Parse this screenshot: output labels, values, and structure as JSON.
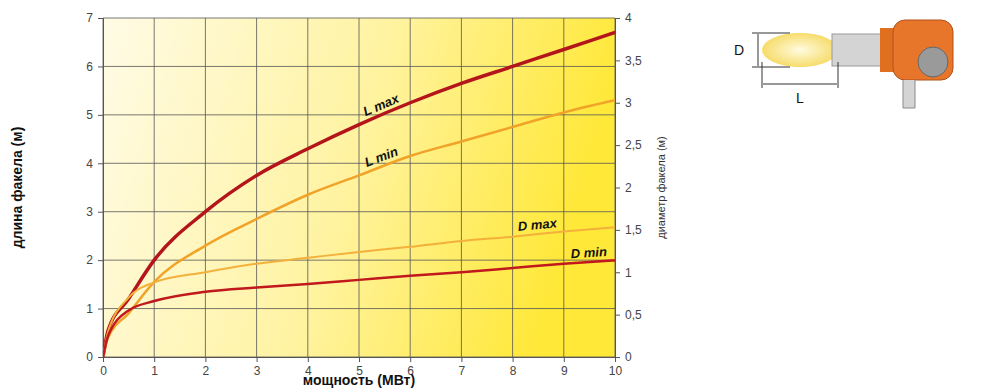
{
  "chart_data": {
    "type": "line",
    "x_label": "мощность (МВт)",
    "y_label": "длина факела (м)",
    "y2_label": "диаметр факела (м)",
    "x": [
      0,
      0.1,
      0.5,
      1,
      2,
      3,
      4,
      5,
      6,
      7,
      8,
      9,
      10
    ],
    "series": [
      {
        "name": "L max",
        "color": "#b3151b",
        "values": [
          0,
          0.55,
          1.2,
          2.0,
          3.0,
          3.75,
          4.3,
          4.8,
          5.25,
          5.65,
          6.0,
          6.35,
          6.7
        ]
      },
      {
        "name": "L min",
        "color": "#f0a328",
        "values": [
          0,
          0.4,
          0.9,
          1.55,
          2.3,
          2.85,
          3.35,
          3.75,
          4.15,
          4.45,
          4.75,
          5.05,
          5.3
        ]
      },
      {
        "name": "D max",
        "color": "#f3b03b",
        "axis": "y2",
        "values": [
          0,
          0.3,
          0.7,
          0.88,
          1.0,
          1.1,
          1.17,
          1.24,
          1.3,
          1.37,
          1.42,
          1.48,
          1.53
        ]
      },
      {
        "name": "D min",
        "color": "#c0181c",
        "axis": "y2",
        "values": [
          0,
          0.25,
          0.55,
          0.66,
          0.77,
          0.82,
          0.86,
          0.91,
          0.96,
          1.0,
          1.05,
          1.1,
          1.14
        ]
      }
    ],
    "xlim": [
      0,
      10
    ],
    "xticks": [
      0,
      1,
      2,
      3,
      4,
      5,
      6,
      7,
      8,
      9,
      10
    ],
    "ylim": [
      0,
      7
    ],
    "yticks": [
      0,
      1,
      2,
      3,
      4,
      5,
      6,
      7
    ],
    "y2lim": [
      0,
      4
    ],
    "y2ticks": [
      0,
      {
        "value": 0.5,
        "label": "0,5"
      },
      1,
      {
        "value": 1.5,
        "label": "1,5"
      },
      2,
      {
        "value": 2.5,
        "label": "2,5"
      },
      3,
      {
        "value": 3.5,
        "label": "3,5"
      },
      4
    ],
    "grid": true,
    "annotations": [
      "D",
      "L"
    ]
  }
}
